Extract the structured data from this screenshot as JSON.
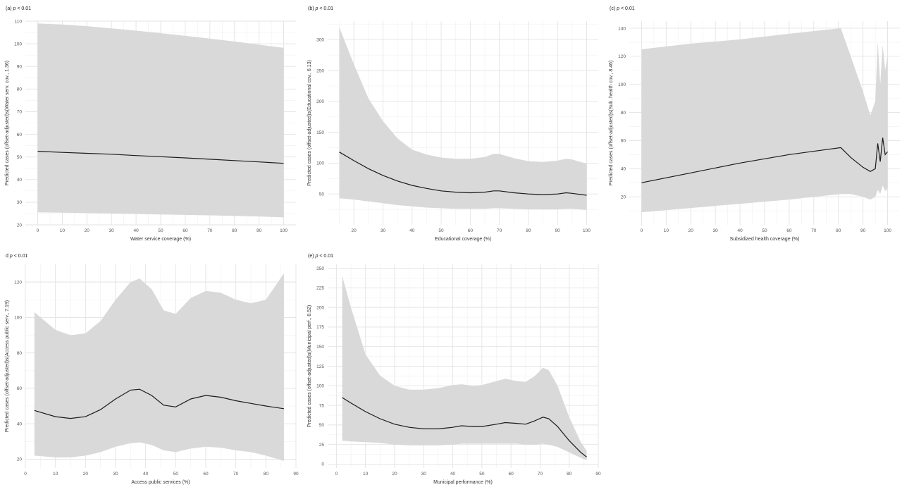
{
  "chart_data": [
    {
      "type": "line",
      "title_prefix": "(a) ",
      "title_p": "p",
      "title_suffix": " < 0.01",
      "xlabel": "Water service coverage (%)",
      "ylabel": "Predicted cases (offset-adjusted)s(Water serv. cov., 1.36)",
      "xlim": [
        -5,
        105
      ],
      "ylim": [
        20,
        110
      ],
      "xticks": [
        0,
        10,
        20,
        30,
        40,
        50,
        60,
        70,
        80,
        90,
        100
      ],
      "yticks": [
        20,
        30,
        40,
        50,
        60,
        70,
        80,
        90,
        100,
        110
      ],
      "grid": true,
      "series": [
        {
          "x": [
            0,
            10,
            20,
            30,
            40,
            50,
            60,
            70,
            80,
            90,
            100
          ],
          "y": [
            52.5,
            52,
            51.6,
            51.2,
            50.6,
            50.1,
            49.6,
            49,
            48.4,
            47.8,
            47.2
          ],
          "lower": [
            25.5,
            25.4,
            25.2,
            25,
            24.8,
            24.6,
            24.4,
            24.2,
            24,
            23.7,
            23.3
          ],
          "upper": [
            109,
            108.5,
            107.8,
            106.8,
            105.8,
            104.7,
            103.5,
            102.3,
            101,
            99.6,
            98.2
          ]
        }
      ]
    },
    {
      "type": "line",
      "title_prefix": "(b) ",
      "title_p": "p",
      "title_suffix": " < 0.01",
      "xlabel": "Educational coverage (%)",
      "ylabel": "Predicted cases (offset-adjusted)s(Educational cov., 6.13)",
      "xlim": [
        11,
        104
      ],
      "ylim": [
        0,
        330
      ],
      "xticks": [
        20,
        30,
        40,
        50,
        60,
        70,
        80,
        90,
        100
      ],
      "yticks": [
        50,
        100,
        150,
        200,
        250,
        300
      ],
      "grid": true,
      "series": [
        {
          "x": [
            15,
            20,
            25,
            30,
            35,
            40,
            45,
            50,
            55,
            60,
            65,
            68,
            70,
            75,
            80,
            85,
            90,
            93,
            95,
            100
          ],
          "y": [
            118,
            104,
            91,
            80,
            71,
            64,
            59,
            55,
            53,
            52,
            53,
            55,
            55,
            52,
            50,
            49,
            50,
            52,
            51,
            48
          ],
          "lower": [
            43,
            41,
            38,
            35,
            32,
            30,
            28,
            27,
            26,
            26,
            26,
            27,
            27,
            26,
            25,
            25,
            25,
            26,
            26,
            24
          ],
          "upper": [
            320,
            260,
            205,
            168,
            140,
            122,
            114,
            109,
            107,
            107,
            110,
            115,
            115,
            108,
            103,
            102,
            104,
            107,
            106,
            99
          ]
        }
      ]
    },
    {
      "type": "line",
      "title_prefix": "(c) ",
      "title_p": "p",
      "title_suffix": " < 0.01",
      "xlabel": "Subsidized health coverage (%)",
      "ylabel": "Predicted cases (offset-adjusted)s(Sub. health cov., 8.46)",
      "xlim": [
        -5,
        105
      ],
      "ylim": [
        0,
        145
      ],
      "xticks": [
        0,
        10,
        20,
        30,
        40,
        50,
        60,
        70,
        80,
        90,
        100
      ],
      "yticks": [
        20,
        40,
        60,
        80,
        100,
        120,
        140
      ],
      "grid": true,
      "series": [
        {
          "x": [
            0,
            20,
            40,
            60,
            81,
            85,
            90,
            93,
            95,
            96,
            97,
            98,
            99,
            100
          ],
          "y": [
            30,
            37,
            44,
            50,
            55,
            48,
            41,
            38,
            40,
            58,
            45,
            62,
            50,
            52
          ],
          "lower": [
            9,
            12,
            15,
            18,
            22,
            22,
            20,
            18,
            20,
            25,
            22,
            28,
            24,
            26
          ],
          "upper": [
            125,
            129,
            132,
            136,
            140,
            120,
            95,
            78,
            88,
            130,
            100,
            128,
            110,
            120
          ]
        }
      ]
    },
    {
      "type": "line",
      "title_prefix": "d ",
      "title_p": "p",
      "title_suffix": " < 0.01",
      "xlabel": "Access public services (%)",
      "ylabel": "Predicted cases (offset-adjusted)s(Access public serv., 7.19)",
      "xlim": [
        0,
        90
      ],
      "ylim": [
        15,
        130
      ],
      "xticks": [
        0,
        10,
        20,
        30,
        40,
        50,
        60,
        70,
        80,
        90
      ],
      "yticks": [
        20,
        40,
        60,
        80,
        100,
        120
      ],
      "grid": true,
      "series": [
        {
          "x": [
            3,
            10,
            15,
            20,
            25,
            30,
            35,
            38,
            42,
            46,
            50,
            55,
            60,
            65,
            70,
            75,
            80,
            86
          ],
          "y": [
            47.5,
            44,
            43,
            44,
            48,
            54,
            59,
            59.5,
            56,
            50.5,
            49.5,
            54,
            56,
            55,
            53,
            51.5,
            50,
            48.5
          ],
          "lower": [
            22,
            21,
            21,
            22,
            24,
            27,
            29,
            29.5,
            28,
            25,
            24,
            26,
            27,
            26.5,
            25,
            24,
            22,
            19
          ],
          "upper": [
            103,
            93,
            90,
            91,
            98,
            110,
            120,
            122,
            116,
            104,
            102,
            111,
            115,
            114,
            110,
            108,
            110,
            125
          ]
        }
      ]
    },
    {
      "type": "line",
      "title_prefix": "(e) ",
      "title_p": "p",
      "title_suffix": " < 0.01",
      "xlabel": "Municipal performance (%)",
      "ylabel": "Predicted cases (offset-adjusted)s(Municipal perf., 8.52)",
      "xlim": [
        -3,
        90
      ],
      "ylim": [
        -5,
        255
      ],
      "xticks": [
        0,
        10,
        20,
        30,
        40,
        50,
        60,
        70,
        80,
        90
      ],
      "yticks": [
        0,
        25,
        50,
        75,
        100,
        125,
        150,
        175,
        200,
        225,
        250
      ],
      "grid": true,
      "series": [
        {
          "x": [
            2,
            5,
            10,
            15,
            20,
            25,
            30,
            35,
            40,
            43,
            47,
            50,
            55,
            58,
            62,
            65,
            68,
            71,
            73,
            76,
            80,
            84,
            86
          ],
          "y": [
            85,
            78,
            67,
            58,
            51,
            47,
            45,
            45,
            47,
            49,
            48,
            48,
            51,
            53,
            52,
            51,
            55,
            60,
            58,
            48,
            30,
            15,
            9
          ],
          "lower": [
            30,
            29,
            28,
            27,
            25,
            24,
            24,
            24,
            25,
            26,
            26,
            26,
            26,
            26,
            26,
            25,
            25,
            26,
            25,
            22,
            15,
            8,
            5
          ],
          "upper": [
            240,
            200,
            140,
            113,
            100,
            95,
            95,
            97,
            101,
            102,
            100,
            101,
            106,
            109,
            106,
            105,
            112,
            123,
            120,
            100,
            60,
            28,
            17
          ]
        }
      ]
    }
  ]
}
